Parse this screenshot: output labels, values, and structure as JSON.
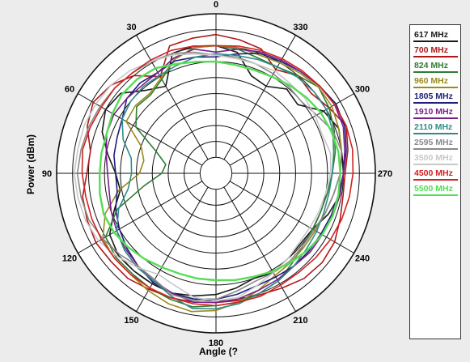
{
  "chart_data": {
    "type": "polar",
    "xlabel": "Angle  (?",
    "ylabel": "Power  (dBm)",
    "angle_ticks": [
      "0",
      "30",
      "60",
      "90",
      "120",
      "150",
      "180",
      "210",
      "240",
      "270",
      "300",
      "330"
    ],
    "angle_direction": "counterclockwise, 0 at top",
    "rings": 10,
    "grid": true,
    "legend_position": "right",
    "series": [
      {
        "name": "617 MHz",
        "color": "#1a1a1a",
        "r": [
          8.0,
          8.1,
          8.0,
          6.3,
          6.8,
          7.8,
          8.0,
          7.6,
          6.9,
          6.3,
          6.1,
          6.8,
          7.7,
          8.0,
          8.0,
          8.0,
          8.0,
          7.8,
          7.6,
          7.3,
          7.0,
          7.2,
          7.0,
          6.9,
          7.0,
          7.5,
          7.9,
          8.0,
          8.0,
          8.2,
          7.8,
          6.7,
          6.9,
          6.3,
          6.5,
          7.7
        ]
      },
      {
        "name": "700 MHz",
        "color": "#b01818",
        "r": [
          8.7,
          8.6,
          8.5,
          7.0,
          8.0,
          8.6,
          8.9,
          8.6,
          8.0,
          8.1,
          8.5,
          8.6,
          8.7,
          8.6,
          8.6,
          8.4,
          8.3,
          8.2,
          8.1,
          8.1,
          8.1,
          8.3,
          8.6,
          8.7,
          8.6,
          8.3,
          8.1,
          8.1,
          8.4,
          8.7,
          8.2,
          7.8,
          8.0,
          7.5,
          8.3,
          8.5
        ]
      },
      {
        "name": "824 MHz",
        "color": "#2e7d32",
        "r": [
          8.0,
          8.0,
          7.6,
          6.8,
          6.4,
          6.5,
          5.8,
          4.0,
          3.2,
          3.4,
          4.6,
          6.6,
          8.0,
          8.2,
          8.2,
          8.3,
          8.4,
          8.5,
          8.3,
          8.2,
          8.0,
          7.8,
          7.4,
          7.1,
          7.0,
          7.0,
          7.1,
          7.3,
          7.6,
          7.9,
          8.2,
          8.4,
          8.0,
          7.7,
          7.7,
          7.9
        ]
      },
      {
        "name": "960 MHz",
        "color": "#9a8a1c",
        "r": [
          8.0,
          8.0,
          7.6,
          6.9,
          6.5,
          6.6,
          6.5,
          5.0,
          4.6,
          4.8,
          6.2,
          7.4,
          8.2,
          8.3,
          8.3,
          8.5,
          8.7,
          8.8,
          8.6,
          8.2,
          7.8,
          7.4,
          7.3,
          7.2,
          7.2,
          7.3,
          7.5,
          7.8,
          8.0,
          8.2,
          8.4,
          8.4,
          8.2,
          8.0,
          7.9,
          8.0
        ]
      },
      {
        "name": "1805 MHz",
        "color": "#1f1f7a",
        "r": [
          7.3,
          7.4,
          7.5,
          7.3,
          7.4,
          7.3,
          6.8,
          6.6,
          6.5,
          6.3,
          6.3,
          6.7,
          7.0,
          7.3,
          7.6,
          7.9,
          8.0,
          8.0,
          7.9,
          7.7,
          7.5,
          7.5,
          7.6,
          7.6,
          7.6,
          7.7,
          7.8,
          8.0,
          8.3,
          8.6,
          8.7,
          8.5,
          8.3,
          8.1,
          8.0,
          7.6
        ]
      },
      {
        "name": "1910 MHz",
        "color": "#7a1f8a",
        "r": [
          7.6,
          7.9,
          7.7,
          7.3,
          7.2,
          7.3,
          7.4,
          7.3,
          7.0,
          6.8,
          6.8,
          7.0,
          7.2,
          7.4,
          7.6,
          7.8,
          8.0,
          8.2,
          8.1,
          8.0,
          7.8,
          7.7,
          7.6,
          7.7,
          7.7,
          7.8,
          7.9,
          8.0,
          8.2,
          8.5,
          8.6,
          8.5,
          8.3,
          8.2,
          8.1,
          7.9
        ]
      },
      {
        "name": "2110 MHz",
        "color": "#2e8b8b",
        "r": [
          7.5,
          7.4,
          7.2,
          7.1,
          7.1,
          7.0,
          6.8,
          6.2,
          5.4,
          5.3,
          5.6,
          6.5,
          7.2,
          7.5,
          7.7,
          7.8,
          8.2,
          8.6,
          8.5,
          8.3,
          8.0,
          7.8,
          7.6,
          7.4,
          7.3,
          7.2,
          7.2,
          7.3,
          7.5,
          7.8,
          8.0,
          8.0,
          7.9,
          7.7,
          7.6,
          7.5
        ]
      },
      {
        "name": "2595 MHz",
        "color": "#8a8a8a",
        "r": [
          7.4,
          7.7,
          8.0,
          8.1,
          8.2,
          8.3,
          8.4,
          8.5,
          8.6,
          8.7,
          8.6,
          8.5,
          8.2,
          7.9,
          7.6,
          7.7,
          8.1,
          8.1,
          7.9,
          7.5,
          7.2,
          7.2,
          7.2,
          7.1,
          7.1,
          7.3,
          7.5,
          7.8,
          8.0,
          7.8,
          7.3,
          7.0,
          7.1,
          7.2,
          7.3,
          7.4
        ]
      },
      {
        "name": "3500 MHz",
        "color": "#c8c8c8",
        "r": [
          7.4,
          7.6,
          7.9,
          8.1,
          8.4,
          8.6,
          8.7,
          8.8,
          8.8,
          8.9,
          8.8,
          8.7,
          8.5,
          8.1,
          7.7,
          7.3,
          7.5,
          7.9,
          8.0,
          7.9,
          7.5,
          7.2,
          7.0,
          6.8,
          6.8,
          6.9,
          7.0,
          7.2,
          7.3,
          7.1,
          7.2,
          7.3,
          7.3,
          7.4,
          7.3,
          7.3
        ]
      },
      {
        "name": "4500 MHz",
        "color": "#d22222",
        "r": [
          8.0,
          8.1,
          8.2,
          8.2,
          8.2,
          8.3,
          8.3,
          8.4,
          8.5,
          8.4,
          8.3,
          8.3,
          8.3,
          8.3,
          8.3,
          8.3,
          8.3,
          8.3,
          8.3,
          8.2,
          8.2,
          8.1,
          8.1,
          8.2,
          8.3,
          8.4,
          8.5,
          8.6,
          8.7,
          8.7,
          8.6,
          8.5,
          8.4,
          8.3,
          8.2,
          8.1
        ]
      },
      {
        "name": "5500 MHz",
        "color": "#55dd55",
        "r": [
          7.0,
          7.1,
          7.3,
          7.6,
          7.7,
          7.7,
          7.5,
          7.3,
          7.3,
          7.3,
          7.4,
          7.5,
          7.4,
          7.2,
          7.0,
          6.8,
          6.7,
          6.7,
          6.7,
          6.8,
          6.9,
          7.1,
          7.3,
          7.5,
          7.7,
          7.8,
          7.8,
          7.8,
          7.8,
          7.7,
          7.6,
          7.4,
          7.2,
          7.0,
          6.9,
          6.9
        ]
      }
    ]
  }
}
